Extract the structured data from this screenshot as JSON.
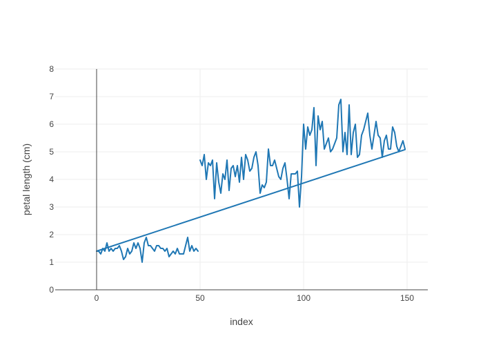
{
  "chart_data": {
    "type": "line",
    "xlabel": "index",
    "ylabel": "petal length (cm)",
    "xlim": [
      -20,
      160
    ],
    "ylim": [
      0,
      8
    ],
    "x_ticks": [
      0,
      50,
      100,
      150
    ],
    "y_ticks": [
      0,
      1,
      2,
      3,
      4,
      5,
      6,
      7,
      8
    ],
    "grid": true,
    "series": [
      {
        "color": "#1f77b4",
        "segments": [
          {
            "x": [
              0,
              1,
              2,
              3,
              4,
              5,
              6,
              7,
              8,
              9,
              10,
              11,
              12,
              13,
              14,
              15,
              16,
              17,
              18,
              19,
              20,
              21,
              22,
              23,
              24,
              25,
              26,
              27,
              28,
              29,
              30,
              31,
              32,
              33,
              34,
              35,
              36,
              37,
              38,
              39,
              40,
              41,
              42,
              43,
              44,
              45,
              46,
              47,
              48,
              49
            ],
            "y": [
              1.4,
              1.4,
              1.3,
              1.5,
              1.4,
              1.7,
              1.4,
              1.5,
              1.4,
              1.5,
              1.5,
              1.6,
              1.4,
              1.1,
              1.2,
              1.5,
              1.3,
              1.4,
              1.7,
              1.5,
              1.7,
              1.5,
              1.0,
              1.7,
              1.9,
              1.6,
              1.6,
              1.5,
              1.4,
              1.6,
              1.6,
              1.5,
              1.5,
              1.4,
              1.5,
              1.2,
              1.3,
              1.4,
              1.3,
              1.5,
              1.3,
              1.3,
              1.3,
              1.6,
              1.9,
              1.4,
              1.6,
              1.4,
              1.5,
              1.4
            ]
          },
          {
            "x": [
              50,
              51,
              52,
              53,
              54,
              55,
              56,
              57,
              58,
              59,
              60,
              61,
              62,
              63,
              64,
              65,
              66,
              67,
              68,
              69,
              70,
              71,
              72,
              73,
              74,
              75,
              76,
              77,
              78,
              79,
              80,
              81,
              82,
              83,
              84,
              85,
              86,
              87,
              88,
              89,
              90,
              91,
              92,
              93,
              94,
              95,
              96,
              97,
              98,
              99,
              100,
              101,
              102,
              103,
              104,
              105,
              106,
              107,
              108,
              109,
              110,
              111,
              112,
              113,
              114,
              115,
              116,
              117,
              118,
              119,
              120,
              121,
              122,
              123,
              124,
              125,
              126,
              127,
              128,
              129,
              130,
              131,
              132,
              133,
              134,
              135,
              136,
              137,
              138,
              139,
              140,
              141,
              142,
              143,
              144,
              145,
              146,
              147,
              148,
              149
            ],
            "y": [
              4.7,
              4.5,
              4.9,
              4.0,
              4.6,
              4.5,
              4.7,
              3.3,
              4.6,
              3.9,
              3.5,
              4.2,
              4.0,
              4.7,
              3.6,
              4.4,
              4.5,
              4.1,
              4.5,
              3.9,
              4.8,
              4.0,
              4.9,
              4.7,
              4.3,
              4.4,
              4.8,
              5.0,
              4.5,
              3.5,
              3.8,
              3.7,
              3.9,
              5.1,
              4.5,
              4.5,
              4.7,
              4.4,
              4.1,
              4.0,
              4.4,
              4.6,
              4.0,
              3.3,
              4.2,
              4.2,
              4.2,
              4.3,
              3.0,
              4.1,
              6.0,
              5.1,
              5.9,
              5.6,
              5.8,
              6.6,
              4.5,
              6.3,
              5.8,
              6.1,
              5.1,
              5.3,
              5.5,
              5.0,
              5.1,
              5.3,
              5.5,
              6.7,
              6.9,
              5.0,
              5.7,
              4.9,
              6.7,
              4.9,
              5.7,
              6.0,
              4.8,
              4.9,
              5.6,
              5.8,
              6.1,
              6.4,
              5.6,
              5.1,
              5.6,
              6.1,
              5.6,
              5.5,
              4.8,
              5.4,
              5.6,
              5.1,
              5.1,
              5.9,
              5.7,
              5.2,
              5.0,
              5.2,
              5.4,
              5.1
            ]
          }
        ]
      },
      {
        "color": "#1f77b4",
        "x": [
          0,
          149
        ],
        "y": [
          1.4,
          5.08
        ]
      }
    ]
  }
}
